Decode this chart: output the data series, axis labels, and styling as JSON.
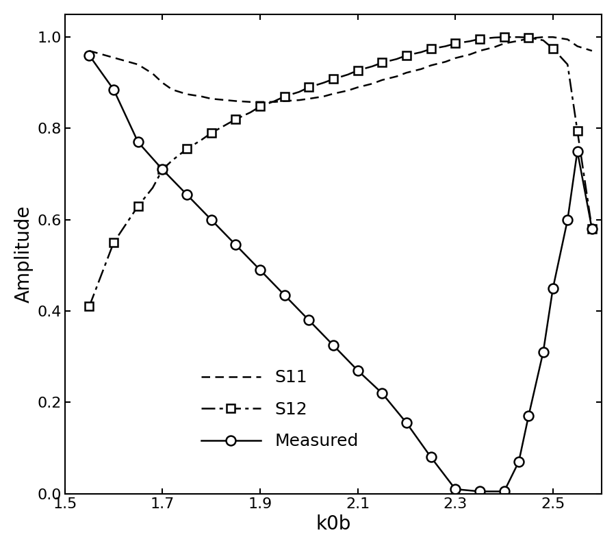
{
  "title": "",
  "xlabel": "k0b",
  "ylabel": "Amplitude",
  "xlim": [
    1.5,
    2.6
  ],
  "ylim": [
    0,
    1.05
  ],
  "xticks": [
    1.5,
    1.7,
    1.9,
    2.1,
    2.3,
    2.5
  ],
  "yticks": [
    0,
    0.2,
    0.4,
    0.6,
    0.8,
    1.0
  ],
  "background_color": "#ffffff",
  "line_color": "#000000",
  "S11_x": [
    1.55,
    1.6,
    1.65,
    1.68,
    1.7,
    1.72,
    1.75,
    1.78,
    1.8,
    1.83,
    1.85,
    1.88,
    1.9,
    1.93,
    1.95,
    1.98,
    2.0,
    2.03,
    2.05,
    2.08,
    2.1,
    2.13,
    2.15,
    2.18,
    2.2,
    2.23,
    2.25,
    2.28,
    2.3,
    2.33,
    2.35,
    2.38,
    2.4,
    2.43,
    2.45,
    2.48,
    2.5,
    2.53,
    2.55,
    2.58
  ],
  "S11_y": [
    0.97,
    0.955,
    0.94,
    0.92,
    0.9,
    0.885,
    0.875,
    0.87,
    0.865,
    0.862,
    0.86,
    0.858,
    0.858,
    0.858,
    0.86,
    0.862,
    0.865,
    0.87,
    0.876,
    0.883,
    0.89,
    0.898,
    0.906,
    0.914,
    0.922,
    0.93,
    0.938,
    0.946,
    0.954,
    0.962,
    0.97,
    0.978,
    0.986,
    0.992,
    0.997,
    1.0,
    1.0,
    0.995,
    0.98,
    0.97
  ],
  "S12_x": [
    1.55,
    1.6,
    1.65,
    1.68,
    1.7,
    1.72,
    1.75,
    1.78,
    1.8,
    1.83,
    1.85,
    1.88,
    1.9,
    1.93,
    1.95,
    1.98,
    2.0,
    2.03,
    2.05,
    2.08,
    2.1,
    2.13,
    2.15,
    2.18,
    2.2,
    2.23,
    2.25,
    2.28,
    2.3,
    2.33,
    2.35,
    2.38,
    2.4,
    2.43,
    2.45,
    2.48,
    2.5,
    2.53,
    2.55,
    2.58
  ],
  "S12_y": [
    0.41,
    0.55,
    0.63,
    0.67,
    0.71,
    0.73,
    0.755,
    0.775,
    0.79,
    0.808,
    0.82,
    0.835,
    0.848,
    0.86,
    0.87,
    0.88,
    0.89,
    0.9,
    0.908,
    0.918,
    0.927,
    0.936,
    0.944,
    0.952,
    0.96,
    0.967,
    0.974,
    0.98,
    0.986,
    0.991,
    0.996,
    0.999,
    1.0,
    1.0,
    0.999,
    0.993,
    0.975,
    0.94,
    0.795,
    0.58
  ],
  "S12_marker_x": [
    1.55,
    1.6,
    1.65,
    1.7,
    1.75,
    1.8,
    1.85,
    1.9,
    1.95,
    2.0,
    2.05,
    2.1,
    2.15,
    2.2,
    2.25,
    2.3,
    2.35,
    2.4,
    2.45,
    2.5,
    2.55,
    2.58
  ],
  "S12_marker_y": [
    0.41,
    0.55,
    0.63,
    0.71,
    0.755,
    0.79,
    0.82,
    0.848,
    0.87,
    0.89,
    0.908,
    0.927,
    0.944,
    0.96,
    0.974,
    0.986,
    0.996,
    1.0,
    0.999,
    0.975,
    0.795,
    0.58
  ],
  "Meas_x": [
    1.55,
    1.6,
    1.65,
    1.7,
    1.75,
    1.8,
    1.85,
    1.9,
    1.95,
    2.0,
    2.05,
    2.1,
    2.15,
    2.2,
    2.25,
    2.3,
    2.35,
    2.4,
    2.43,
    2.45,
    2.48,
    2.5,
    2.53,
    2.55,
    2.58
  ],
  "Meas_y": [
    0.96,
    0.885,
    0.77,
    0.71,
    0.655,
    0.6,
    0.545,
    0.49,
    0.435,
    0.38,
    0.325,
    0.27,
    0.22,
    0.155,
    0.08,
    0.01,
    0.005,
    0.005,
    0.07,
    0.17,
    0.31,
    0.45,
    0.6,
    0.75,
    0.58
  ],
  "fontsize_labels": 20,
  "fontsize_ticks": 16,
  "fontsize_legend": 18
}
